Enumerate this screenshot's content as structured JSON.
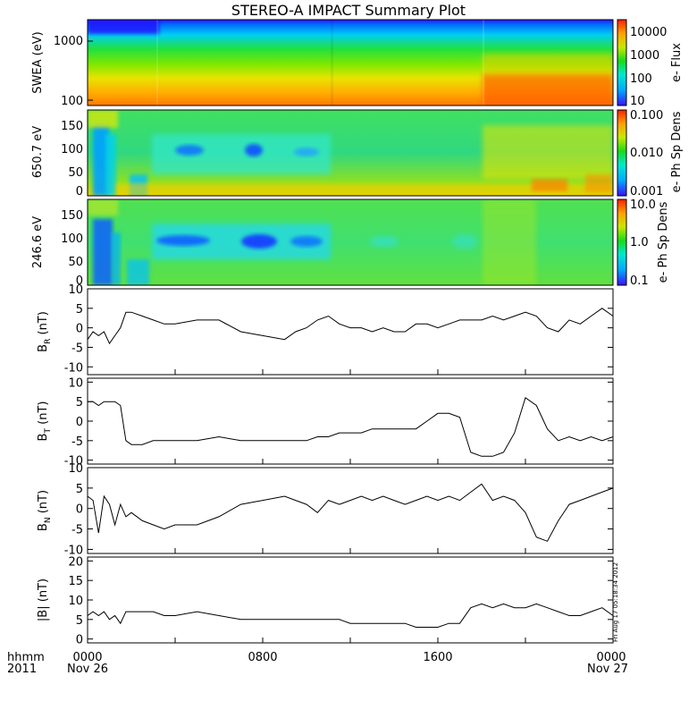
{
  "title": "STEREO-A IMPACT Summary Plot",
  "footer": {
    "unit_label": "hhmm",
    "year": "2011",
    "time_ticks": [
      "0000",
      "0800",
      "1600",
      "0000"
    ],
    "date_start": "Nov 26",
    "date_end": "Nov 27"
  },
  "stamp": "Fri Aug 17 05:18:34 2012",
  "spectrograms": [
    {
      "ylabel": "SWEA (eV)",
      "yticks": [
        "1000",
        "100"
      ],
      "colorbar_label": "e- Flux",
      "colorbar_ticks": [
        "10000",
        "1000",
        "100",
        "10"
      ]
    },
    {
      "ylabel": "650.7 eV",
      "yticks": [
        "150",
        "100",
        "50",
        "0"
      ],
      "colorbar_label": "e- Ph Sp Dens",
      "colorbar_ticks": [
        "0.100",
        "0.010",
        "0.001"
      ]
    },
    {
      "ylabel": "246.6 eV",
      "yticks": [
        "150",
        "100",
        "50",
        "0"
      ],
      "colorbar_label": "e- Ph Sp Dens",
      "colorbar_ticks": [
        "10.0",
        "1.0",
        "0.1"
      ]
    }
  ],
  "chart_data": [
    {
      "type": "heatmap",
      "ylabel": "SWEA (eV)",
      "y_scale": "log",
      "colorbar_label": "e- Flux",
      "colorbar_scale": "log",
      "colorbar_range": [
        10,
        10000
      ]
    },
    {
      "type": "heatmap",
      "ylabel": "650.7 eV",
      "ylim": [
        0,
        180
      ],
      "colorbar_label": "e- Ph Sp Dens",
      "colorbar_scale": "log",
      "colorbar_range": [
        0.001,
        0.1
      ]
    },
    {
      "type": "heatmap",
      "ylabel": "246.6 eV",
      "ylim": [
        0,
        180
      ],
      "colorbar_label": "e- Ph Sp Dens",
      "colorbar_scale": "log",
      "colorbar_range": [
        0.1,
        10
      ]
    },
    {
      "type": "line",
      "key": "br",
      "ylabel_main": "B",
      "ylabel_sub": "R",
      "ylabel_unit": " (nT)",
      "ylim": [
        -12,
        10
      ],
      "yticks": [
        10,
        5,
        0,
        -5,
        -10
      ],
      "x": [
        0,
        0.25,
        0.5,
        0.75,
        1,
        1.25,
        1.5,
        1.75,
        2,
        2.5,
        3,
        3.5,
        4,
        5,
        6,
        7,
        8,
        9,
        9.5,
        10,
        10.5,
        11,
        11.5,
        12,
        12.5,
        13,
        13.5,
        14,
        14.5,
        15,
        15.5,
        16,
        16.5,
        17,
        17.5,
        18,
        18.5,
        19,
        19.5,
        20,
        20.5,
        21,
        21.5,
        22,
        22.5,
        23,
        23.5,
        24
      ],
      "y": [
        -3,
        -1,
        -2,
        -1,
        -4,
        -2,
        0,
        4,
        4,
        3,
        2,
        1,
        1,
        2,
        2,
        -1,
        -2,
        -3,
        -1,
        0,
        2,
        3,
        1,
        0,
        0,
        -1,
        0,
        -1,
        -1,
        1,
        1,
        0,
        1,
        2,
        2,
        2,
        3,
        2,
        3,
        4,
        3,
        0,
        -1,
        2,
        1,
        3,
        5,
        3
      ]
    },
    {
      "type": "line",
      "key": "bt",
      "ylabel_main": "B",
      "ylabel_sub": "T",
      "ylabel_unit": " (nT)",
      "ylim": [
        -11,
        11
      ],
      "yticks": [
        10,
        5,
        0,
        -5,
        -10
      ],
      "x": [
        0,
        0.25,
        0.5,
        0.75,
        1,
        1.25,
        1.5,
        1.75,
        2,
        2.5,
        3,
        3.5,
        4,
        5,
        6,
        7,
        8,
        9,
        9.5,
        10,
        10.5,
        11,
        11.5,
        12,
        12.5,
        13,
        13.5,
        14,
        14.5,
        15,
        15.5,
        16,
        16.5,
        17,
        17.5,
        18,
        18.5,
        19,
        19.5,
        20,
        20.5,
        21,
        21.5,
        22,
        22.5,
        23,
        23.5,
        24
      ],
      "y": [
        5,
        5,
        4,
        5,
        5,
        5,
        4,
        -5,
        -6,
        -6,
        -5,
        -5,
        -5,
        -5,
        -4,
        -5,
        -5,
        -5,
        -5,
        -5,
        -4,
        -4,
        -3,
        -3,
        -3,
        -2,
        -2,
        -2,
        -2,
        -2,
        0,
        2,
        2,
        1,
        -8,
        -9,
        -9,
        -8,
        -3,
        6,
        4,
        -2,
        -5,
        -4,
        -5,
        -4,
        -5,
        -4
      ]
    },
    {
      "type": "line",
      "key": "bn",
      "ylabel_main": "B",
      "ylabel_sub": "N",
      "ylabel_unit": " (nT)",
      "ylim": [
        -11,
        10
      ],
      "yticks": [
        10,
        5,
        0,
        -5,
        -10
      ],
      "x": [
        0,
        0.25,
        0.5,
        0.75,
        1,
        1.25,
        1.5,
        1.75,
        2,
        2.5,
        3,
        3.5,
        4,
        5,
        6,
        7,
        8,
        9,
        9.5,
        10,
        10.5,
        11,
        11.5,
        12,
        12.5,
        13,
        13.5,
        14,
        14.5,
        15,
        15.5,
        16,
        16.5,
        17,
        17.5,
        18,
        18.5,
        19,
        19.5,
        20,
        20.5,
        21,
        21.5,
        22,
        22.5,
        23,
        23.5,
        24
      ],
      "y": [
        3,
        2,
        -6,
        3,
        1,
        -4,
        1,
        -2,
        -1,
        -3,
        -4,
        -5,
        -4,
        -4,
        -2,
        1,
        2,
        3,
        2,
        1,
        -1,
        2,
        1,
        2,
        3,
        2,
        3,
        2,
        1,
        2,
        3,
        2,
        3,
        2,
        4,
        6,
        2,
        3,
        2,
        -1,
        -7,
        -8,
        -3,
        1,
        2,
        3,
        4,
        5
      ]
    },
    {
      "type": "line",
      "key": "bmag",
      "ylabel_main": "|B|",
      "ylabel_sub": "",
      "ylabel_unit": " (nT)",
      "ylim": [
        -1,
        21
      ],
      "yticks": [
        20,
        15,
        10,
        5,
        0
      ],
      "x": [
        0,
        0.25,
        0.5,
        0.75,
        1,
        1.25,
        1.5,
        1.75,
        2,
        2.5,
        3,
        3.5,
        4,
        5,
        6,
        7,
        8,
        9,
        9.5,
        10,
        10.5,
        11,
        11.5,
        12,
        12.5,
        13,
        13.5,
        14,
        14.5,
        15,
        15.5,
        16,
        16.5,
        17,
        17.5,
        18,
        18.5,
        19,
        19.5,
        20,
        20.5,
        21,
        21.5,
        22,
        22.5,
        23,
        23.5,
        24
      ],
      "y": [
        6,
        7,
        6,
        7,
        5,
        6,
        4,
        7,
        7,
        7,
        7,
        6,
        6,
        7,
        6,
        5,
        5,
        5,
        5,
        5,
        5,
        5,
        5,
        4,
        4,
        4,
        4,
        4,
        4,
        3,
        3,
        3,
        4,
        4,
        8,
        9,
        8,
        9,
        8,
        8,
        9,
        8,
        7,
        6,
        6,
        7,
        8,
        6
      ]
    }
  ]
}
